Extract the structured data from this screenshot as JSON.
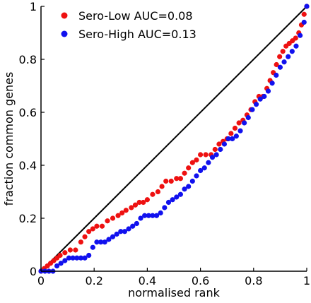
{
  "chart_data": {
    "type": "scatter",
    "xlabel": "normalised rank",
    "ylabel": "fraction common genes",
    "xlim": [
      0,
      1
    ],
    "ylim": [
      0,
      1
    ],
    "x_ticks": [
      "0",
      "0.2",
      "0.4",
      "0.6",
      "0.8",
      "1"
    ],
    "y_ticks": [
      "0",
      "0.2",
      "0.4",
      "0.6",
      "0.8",
      "1"
    ],
    "legend_placement": "top-left",
    "reference_line": {
      "from": [
        0,
        0
      ],
      "to": [
        1,
        1
      ],
      "color": "#000000"
    },
    "series": [
      {
        "name": "Sero-Low AUC=0.08",
        "color": "#ee1111",
        "points": [
          [
            0.0,
            0.0
          ],
          [
            0.012,
            0.01
          ],
          [
            0.024,
            0.02
          ],
          [
            0.036,
            0.03
          ],
          [
            0.048,
            0.04
          ],
          [
            0.06,
            0.05
          ],
          [
            0.072,
            0.06
          ],
          [
            0.09,
            0.07
          ],
          [
            0.11,
            0.08
          ],
          [
            0.13,
            0.08
          ],
          [
            0.15,
            0.11
          ],
          [
            0.165,
            0.13
          ],
          [
            0.18,
            0.15
          ],
          [
            0.195,
            0.16
          ],
          [
            0.21,
            0.17
          ],
          [
            0.23,
            0.17
          ],
          [
            0.25,
            0.19
          ],
          [
            0.27,
            0.2
          ],
          [
            0.29,
            0.21
          ],
          [
            0.305,
            0.22
          ],
          [
            0.32,
            0.23
          ],
          [
            0.34,
            0.24
          ],
          [
            0.355,
            0.25
          ],
          [
            0.37,
            0.26
          ],
          [
            0.385,
            0.26
          ],
          [
            0.4,
            0.27
          ],
          [
            0.42,
            0.29
          ],
          [
            0.44,
            0.3
          ],
          [
            0.455,
            0.32
          ],
          [
            0.47,
            0.34
          ],
          [
            0.49,
            0.34
          ],
          [
            0.51,
            0.35
          ],
          [
            0.525,
            0.35
          ],
          [
            0.54,
            0.37
          ],
          [
            0.555,
            0.39
          ],
          [
            0.57,
            0.41
          ],
          [
            0.585,
            0.42
          ],
          [
            0.6,
            0.44
          ],
          [
            0.62,
            0.44
          ],
          [
            0.64,
            0.44
          ],
          [
            0.655,
            0.46
          ],
          [
            0.67,
            0.48
          ],
          [
            0.685,
            0.49
          ],
          [
            0.7,
            0.5
          ],
          [
            0.715,
            0.52
          ],
          [
            0.73,
            0.54
          ],
          [
            0.745,
            0.56
          ],
          [
            0.76,
            0.57
          ],
          [
            0.775,
            0.59
          ],
          [
            0.79,
            0.61
          ],
          [
            0.805,
            0.64
          ],
          [
            0.82,
            0.66
          ],
          [
            0.835,
            0.66
          ],
          [
            0.85,
            0.69
          ],
          [
            0.862,
            0.72
          ],
          [
            0.874,
            0.75
          ],
          [
            0.886,
            0.78
          ],
          [
            0.898,
            0.81
          ],
          [
            0.91,
            0.83
          ],
          [
            0.922,
            0.85
          ],
          [
            0.934,
            0.86
          ],
          [
            0.946,
            0.87
          ],
          [
            0.958,
            0.88
          ],
          [
            0.97,
            0.9
          ],
          [
            0.98,
            0.93
          ],
          [
            0.99,
            0.97
          ],
          [
            1.0,
            1.0
          ]
        ]
      },
      {
        "name": "Sero-High AUC=0.13",
        "color": "#1111ee",
        "points": [
          [
            0.0,
            0.0
          ],
          [
            0.015,
            0.0
          ],
          [
            0.03,
            0.0
          ],
          [
            0.045,
            0.0
          ],
          [
            0.06,
            0.02
          ],
          [
            0.075,
            0.03
          ],
          [
            0.09,
            0.04
          ],
          [
            0.105,
            0.05
          ],
          [
            0.12,
            0.05
          ],
          [
            0.135,
            0.05
          ],
          [
            0.15,
            0.05
          ],
          [
            0.165,
            0.05
          ],
          [
            0.18,
            0.06
          ],
          [
            0.195,
            0.09
          ],
          [
            0.21,
            0.11
          ],
          [
            0.225,
            0.11
          ],
          [
            0.24,
            0.11
          ],
          [
            0.255,
            0.12
          ],
          [
            0.27,
            0.13
          ],
          [
            0.285,
            0.14
          ],
          [
            0.3,
            0.15
          ],
          [
            0.315,
            0.15
          ],
          [
            0.33,
            0.16
          ],
          [
            0.345,
            0.17
          ],
          [
            0.36,
            0.18
          ],
          [
            0.375,
            0.2
          ],
          [
            0.39,
            0.21
          ],
          [
            0.405,
            0.21
          ],
          [
            0.42,
            0.21
          ],
          [
            0.435,
            0.21
          ],
          [
            0.45,
            0.22
          ],
          [
            0.465,
            0.24
          ],
          [
            0.48,
            0.26
          ],
          [
            0.495,
            0.27
          ],
          [
            0.51,
            0.28
          ],
          [
            0.525,
            0.29
          ],
          [
            0.54,
            0.31
          ],
          [
            0.555,
            0.32
          ],
          [
            0.57,
            0.34
          ],
          [
            0.585,
            0.36
          ],
          [
            0.6,
            0.38
          ],
          [
            0.615,
            0.39
          ],
          [
            0.63,
            0.41
          ],
          [
            0.645,
            0.43
          ],
          [
            0.66,
            0.44
          ],
          [
            0.675,
            0.46
          ],
          [
            0.69,
            0.48
          ],
          [
            0.705,
            0.5
          ],
          [
            0.72,
            0.5
          ],
          [
            0.735,
            0.51
          ],
          [
            0.75,
            0.53
          ],
          [
            0.765,
            0.56
          ],
          [
            0.78,
            0.58
          ],
          [
            0.795,
            0.61
          ],
          [
            0.81,
            0.63
          ],
          [
            0.825,
            0.65
          ],
          [
            0.84,
            0.66
          ],
          [
            0.855,
            0.68
          ],
          [
            0.87,
            0.71
          ],
          [
            0.885,
            0.74
          ],
          [
            0.9,
            0.77
          ],
          [
            0.915,
            0.79
          ],
          [
            0.93,
            0.81
          ],
          [
            0.945,
            0.83
          ],
          [
            0.96,
            0.85
          ],
          [
            0.975,
            0.89
          ],
          [
            0.99,
            0.94
          ],
          [
            1.0,
            1.0
          ]
        ]
      }
    ]
  }
}
